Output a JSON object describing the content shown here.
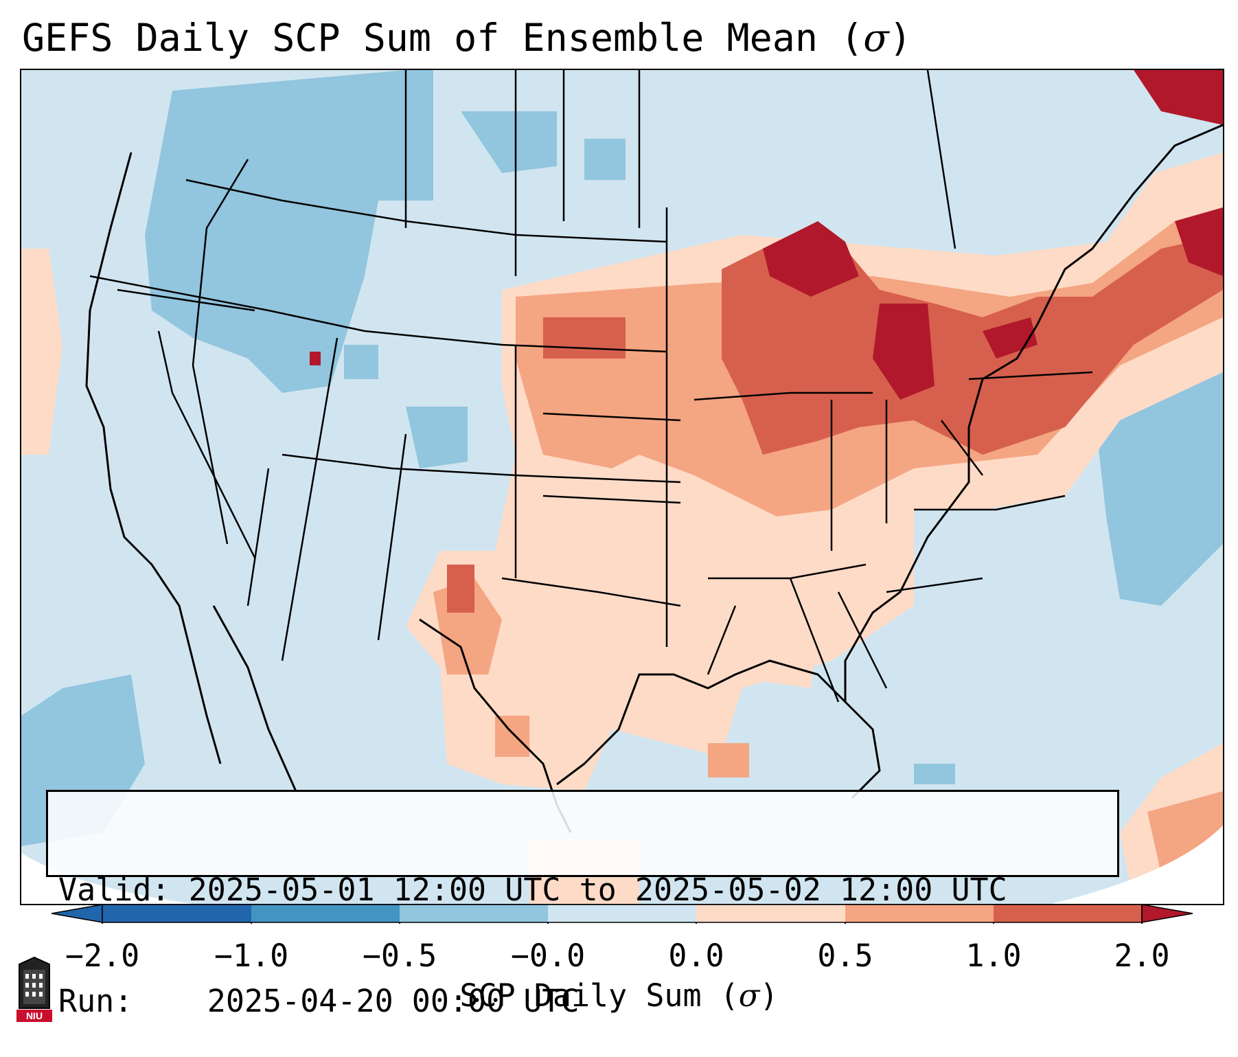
{
  "title": {
    "prefix": "GEFS Daily SCP Sum of Ensemble Mean (",
    "symbol": "σ",
    "suffix": ")"
  },
  "info": {
    "valid_label": "Valid:",
    "valid_value": "2025-05-01 12:00 UTC to 2025-05-02 12:00 UTC",
    "run_label": "Run:",
    "run_value": "2025-04-20 00:00 UTC"
  },
  "colorbar": {
    "ticks": [
      "−2.0",
      "−1.0",
      "−0.5",
      "−0.0",
      "0.0",
      "0.5",
      "1.0",
      "2.0"
    ],
    "label_prefix": "SCP Daily Sum (",
    "label_symbol": "σ",
    "label_suffix": ")",
    "colors": [
      "#2166ac",
      "#4393c3",
      "#92c5de",
      "#d1e5f0",
      "#f7f7f7",
      "#fddbc7",
      "#f4a582",
      "#d6604d",
      "#b2182b"
    ]
  },
  "legend_map": {
    "region": "Contiguous United States",
    "high_values_color": "#b2182b",
    "low_values_color": "#92c5de",
    "background_color": "#d1e5f0"
  },
  "logo": {
    "text": "NIU",
    "icon": "niu-building-logo-icon"
  }
}
